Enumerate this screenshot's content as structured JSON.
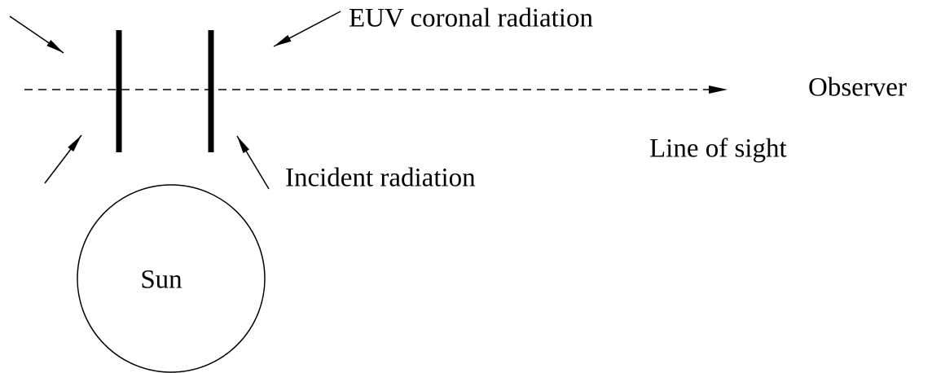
{
  "labels": {
    "euv": "EUV coronal radiation",
    "observer": "Observer",
    "line_of_sight": "Line of sight",
    "incident": "Incident radiation",
    "sun": "Sun"
  }
}
